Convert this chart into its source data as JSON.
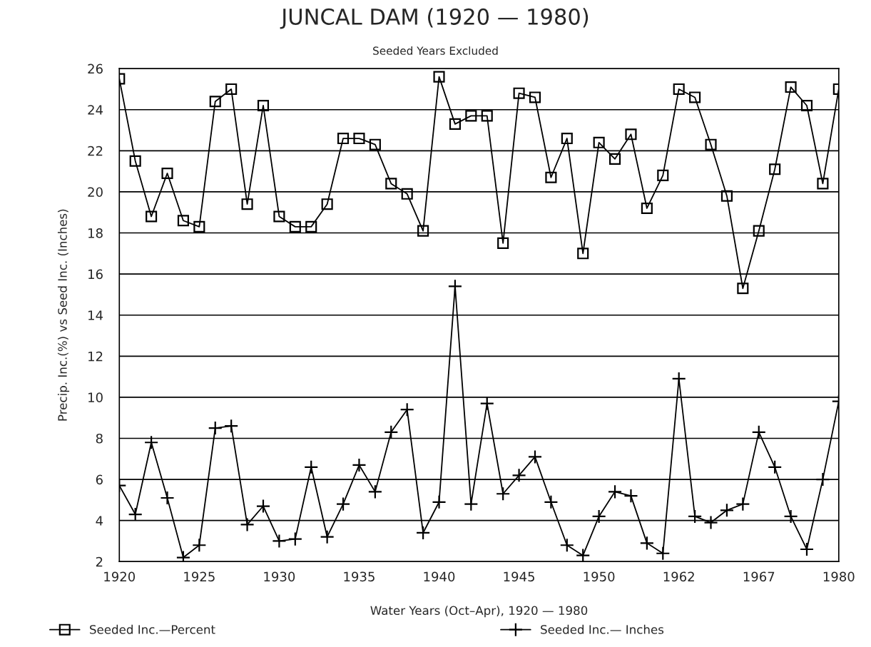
{
  "chart_data": {
    "type": "line",
    "title": "JUNCAL DAM (1920 — 1980)",
    "subtitle": "Seeded Years Excluded",
    "xlabel": "Water Years (Oct–Apr), 1920 — 1980",
    "ylabel": "Precip. Inc.(%) vs Seed Inc. (Inches)",
    "categories": [
      "1920",
      null,
      null,
      null,
      null,
      "1925",
      null,
      null,
      null,
      null,
      "1930",
      null,
      null,
      null,
      null,
      "1935",
      null,
      null,
      null,
      null,
      "1940",
      null,
      null,
      null,
      null,
      "1945",
      null,
      null,
      null,
      null,
      "1950",
      null,
      null,
      null,
      null,
      "1962",
      null,
      null,
      null,
      null,
      "1967",
      null,
      null,
      null,
      null,
      "1980"
    ],
    "series": [
      {
        "name": "Seeded Inc.—Percent",
        "color": "#000000",
        "marker": "square",
        "values": [
          25.5,
          21.5,
          18.8,
          20.9,
          18.6,
          18.3,
          24.4,
          25.0,
          19.4,
          24.2,
          18.8,
          18.3,
          18.3,
          19.4,
          22.6,
          22.6,
          22.3,
          20.4,
          19.9,
          18.1,
          25.6,
          23.3,
          23.7,
          23.7,
          17.5,
          24.8,
          24.6,
          20.7,
          22.6,
          17.0,
          22.4,
          21.6,
          22.8,
          19.2,
          20.8,
          25.0,
          24.6,
          22.3,
          19.8,
          15.3,
          18.1,
          21.1,
          25.1,
          24.2,
          20.4,
          25.0
        ]
      },
      {
        "name": "Seeded Inc.— Inches",
        "color": "#000000",
        "marker": "cross",
        "values": [
          5.7,
          4.3,
          7.8,
          5.1,
          2.2,
          2.8,
          8.5,
          8.6,
          3.8,
          4.7,
          3.0,
          3.1,
          6.6,
          3.2,
          4.8,
          6.7,
          5.4,
          8.3,
          9.4,
          3.4,
          4.9,
          15.4,
          4.8,
          9.7,
          5.3,
          6.2,
          7.1,
          4.9,
          2.8,
          2.3,
          4.2,
          5.4,
          5.2,
          2.9,
          2.4,
          10.9,
          4.2,
          3.9,
          4.5,
          4.8,
          8.3,
          6.6,
          4.2,
          2.6,
          6.0,
          9.8
        ]
      }
    ],
    "ylim": [
      2,
      26
    ],
    "yticks": [
      2,
      4,
      6,
      8,
      10,
      12,
      14,
      16,
      18,
      20,
      22,
      24,
      26
    ],
    "grid": "y",
    "legend": "bottom",
    "line_style": "solid"
  }
}
